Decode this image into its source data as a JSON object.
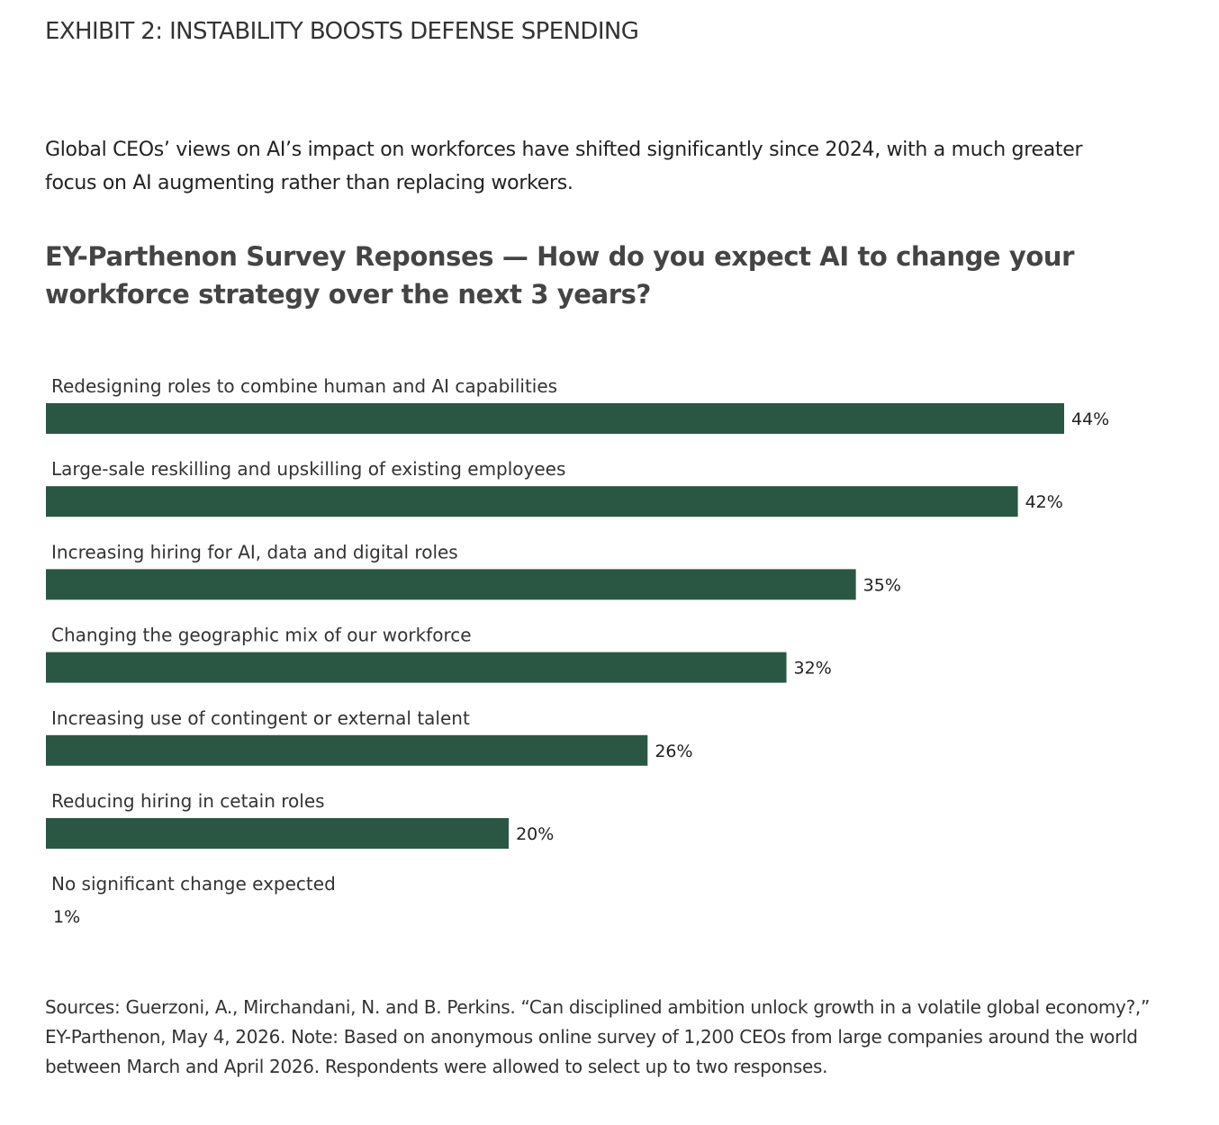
{
  "exhibit_title": "EXHIBIT 2: INSTABILITY BOOSTS DEFENSE SPENDING",
  "intro_text": "Global CEOs’ views on AI’s impact on workforces have shifted significantly since 2024, with a much greater focus on AI augmenting rather than replacing workers.",
  "chart_title": "EY-Parthenon Survey Reponses — How do you expect AI to change your workforce strategy over the next 3 years?",
  "colors": {
    "bar": "#2a5744"
  },
  "chart_data": {
    "type": "bar",
    "orientation": "horizontal",
    "title": "EY-Parthenon Survey Reponses — How do you expect AI to change your workforce strategy over the next 3 years?",
    "categories": [
      "Redesigning roles to combine human and AI capabilities",
      "Large-sale reskilling and upskilling of existing employees",
      "Increasing hiring for AI, data and digital roles",
      "Changing the geographic mix of our workforce",
      "Increasing use of contingent or external talent",
      "Reducing hiring in cetain roles",
      "No significant change expected"
    ],
    "values": [
      44,
      42,
      35,
      32,
      26,
      20,
      1
    ],
    "value_labels": [
      "44%",
      "42%",
      "35%",
      "32%",
      "26%",
      "20%",
      "1%"
    ],
    "unit": "%",
    "grid": false,
    "legend": "none"
  },
  "sources": "Sources: Guerzoni, A., Mirchandani, N. and B. Perkins. “Can disciplined ambition unlock growth in a volatile global economy?,” EY-Parthenon, May 4, 2026. Note: Based on anonymous online survey of 1,200 CEOs from large companies around the world between March and April 2026. Respondents were allowed to select up to two responses."
}
